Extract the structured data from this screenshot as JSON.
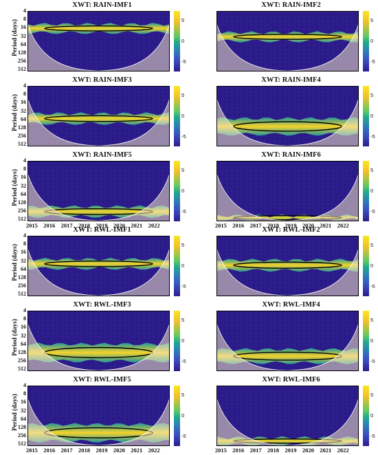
{
  "chart_data": [
    {
      "type": "heatmap",
      "title": "XWT: RAIN-IMF1",
      "ylabel": "Period (days)",
      "yticks": [
        "4",
        "8",
        "16",
        "32",
        "64",
        "128",
        "256",
        "512"
      ],
      "xticks": [],
      "colorbar_ticks": [
        "5",
        "0",
        "-5"
      ],
      "band_period": [
        12,
        24
      ]
    },
    {
      "type": "heatmap",
      "title": "XWT: RAIN-IMF2",
      "ylabel": "",
      "yticks": [],
      "xticks": [],
      "colorbar_ticks": [
        "5",
        "0",
        "-5"
      ],
      "band_period": [
        24,
        48
      ]
    },
    {
      "type": "heatmap",
      "title": "XWT: RAIN-IMF3",
      "ylabel": "Period (days)",
      "yticks": [
        "4",
        "8",
        "16",
        "32",
        "64",
        "128",
        "256",
        "512"
      ],
      "xticks": [],
      "colorbar_ticks": [
        "5",
        "0",
        "-5"
      ],
      "band_period": [
        40,
        90
      ]
    },
    {
      "type": "heatmap",
      "title": "XWT: RAIN-IMF4",
      "ylabel": "",
      "yticks": [],
      "xticks": [],
      "colorbar_ticks": [
        "5",
        "0",
        "-5"
      ],
      "band_period": [
        60,
        220
      ]
    },
    {
      "type": "heatmap",
      "title": "XWT: RAIN-IMF5",
      "ylabel": "Period (days)",
      "yticks": [
        "4",
        "8",
        "16",
        "32",
        "64",
        "128",
        "256",
        "512"
      ],
      "xticks": [
        "2015",
        "2016",
        "2017",
        "2018",
        "2019",
        "2020",
        "2021",
        "2022"
      ],
      "colorbar_ticks": [
        "5",
        "0",
        "-5"
      ],
      "band_period": [
        180,
        400
      ]
    },
    {
      "type": "heatmap",
      "title": "XWT: RAIN-IMF6",
      "ylabel": "",
      "yticks": [],
      "xticks": [
        "2015",
        "2016",
        "2017",
        "2018",
        "2019",
        "2020",
        "2021",
        "2022"
      ],
      "colorbar_ticks": [
        "5",
        "0",
        "-5"
      ],
      "band_period": [
        380,
        520
      ]
    },
    {
      "type": "heatmap",
      "title": "XWT: RWL-IMF1",
      "ylabel": "Period (days)",
      "yticks": [
        "4",
        "8",
        "16",
        "32",
        "64",
        "128",
        "256",
        "512"
      ],
      "xticks": [],
      "colorbar_ticks": [
        "5",
        "0",
        "-5"
      ],
      "band_period": [
        28,
        60
      ]
    },
    {
      "type": "heatmap",
      "title": "XWT: RWL-IMF2",
      "ylabel": "",
      "yticks": [],
      "xticks": [],
      "colorbar_ticks": [
        "5",
        "0",
        "-5"
      ],
      "band_period": [
        30,
        70
      ]
    },
    {
      "type": "heatmap",
      "title": "XWT: RWL-IMF3",
      "ylabel": "Period (days)",
      "yticks": [
        "4",
        "8",
        "16",
        "32",
        "64",
        "128",
        "256",
        "512"
      ],
      "xticks": [],
      "colorbar_ticks": [
        "5",
        "0",
        "-5"
      ],
      "band_period": [
        64,
        260
      ]
    },
    {
      "type": "heatmap",
      "title": "XWT: RWL-IMF4",
      "ylabel": "",
      "yticks": [],
      "xticks": [],
      "colorbar_ticks": [
        "5",
        "0",
        "-5"
      ],
      "band_period": [
        100,
        300
      ]
    },
    {
      "type": "heatmap",
      "title": "XWT: RWL-IMF5",
      "ylabel": "Period (days)",
      "yticks": [
        "4",
        "8",
        "16",
        "32",
        "64",
        "128",
        "256",
        "512"
      ],
      "xticks": [
        "2015",
        "2016",
        "2017",
        "2018",
        "2019",
        "2020",
        "2021",
        "2022"
      ],
      "colorbar_ticks": [
        "5",
        "0",
        "-5"
      ],
      "band_period": [
        100,
        400
      ]
    },
    {
      "type": "heatmap",
      "title": "XWT: RWL-IMF6",
      "ylabel": "",
      "yticks": [],
      "xticks": [
        "2015",
        "2016",
        "2017",
        "2018",
        "2019",
        "2020",
        "2021",
        "2022"
      ],
      "colorbar_ticks": [
        "5",
        "0",
        "-5"
      ],
      "band_period": [
        300,
        520
      ]
    }
  ],
  "colors": {
    "background": "#2c1c8c",
    "band_low": "#1fa3a0",
    "band_high": "#f6d32a",
    "coi": "#f2e4c4"
  }
}
